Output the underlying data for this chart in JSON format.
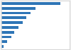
{
  "values": [
    22.5,
    13.0,
    11.0,
    9.5,
    8.0,
    6.5,
    5.0,
    3.8,
    2.2,
    0.9
  ],
  "bar_color": "#2e75b6",
  "background_color": "#f0f0f0",
  "plot_bg_color": "#ffffff",
  "bar_height": 0.55,
  "xlim_max": 26.0
}
